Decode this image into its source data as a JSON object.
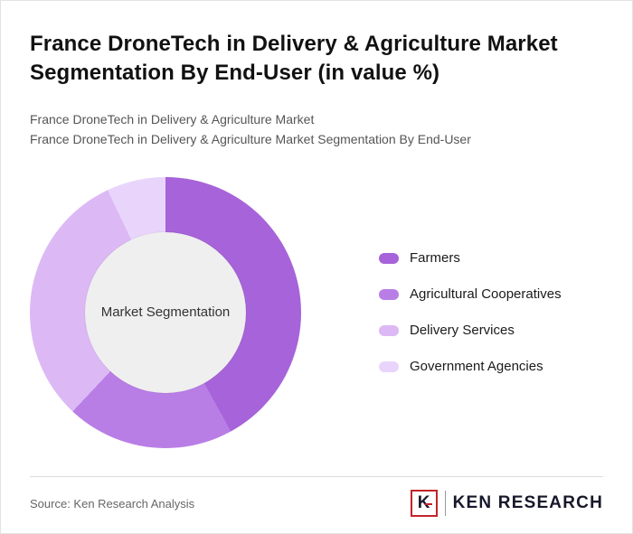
{
  "header": {
    "title": "France DroneTech in Delivery & Agriculture Market Segmentation By End-User (in value %)"
  },
  "subtitles": {
    "line1": "France DroneTech in Delivery & Agriculture Market",
    "line2": "France DroneTech in Delivery & Agriculture Market Segmentation By End-User"
  },
  "chart_data": {
    "type": "pie",
    "style": "donut",
    "center_label": "Market Segmentation",
    "categories": [
      "Farmers",
      "Agricultural Cooperatives",
      "Delivery Services",
      "Government Agencies"
    ],
    "values": [
      42,
      20,
      31,
      7
    ],
    "colors": [
      "#a763d9",
      "#b97ee6",
      "#dcb9f5",
      "#e9d5fb"
    ],
    "legend_position": "right",
    "start_angle_deg": 0,
    "direction": "clockwise",
    "hole_color": "#efefef"
  },
  "footer": {
    "source": "Source: Ken Research Analysis",
    "logo_letter": "K",
    "logo_text": "KEN RESEARCH"
  }
}
